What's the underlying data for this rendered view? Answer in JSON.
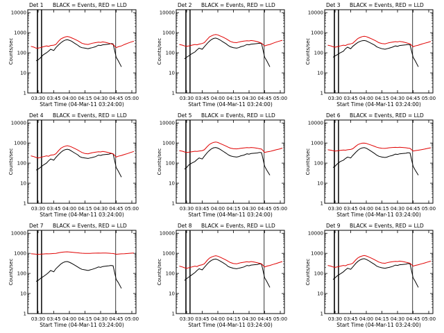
{
  "colors": {
    "events": "#000000",
    "lld": "#e00000",
    "background": "#ffffff"
  },
  "shared": {
    "xticks": [
      "03:30",
      "03:45",
      "04:00",
      "04:15",
      "04:30",
      "04:45",
      "05:00"
    ],
    "xtick_minutes": [
      210,
      225,
      240,
      255,
      270,
      285,
      300
    ],
    "xlim_minutes": [
      200,
      304
    ],
    "yticks": [
      "1",
      "10",
      "100",
      "1000",
      "10000"
    ],
    "ytick_values": [
      1,
      10,
      100,
      1000,
      10000
    ],
    "ylim": [
      1,
      14000
    ],
    "yscale": "log",
    "ylabel": "Counts/sec",
    "xlabel": "Start Time (04-Mar-11 03:24:00)",
    "legend_text": "BLACK = Events, RED = LLD",
    "x_minutes": [
      203,
      206,
      208,
      210,
      212,
      215,
      218,
      220,
      222,
      225,
      227,
      230,
      232,
      234,
      236,
      238,
      240,
      242,
      245,
      248,
      250,
      252,
      255,
      258,
      260,
      262,
      265,
      268,
      270,
      272,
      275,
      278,
      280,
      282,
      285,
      287,
      290,
      293,
      296,
      299,
      302
    ]
  },
  "chart_data": [
    {
      "type": "line",
      "title": "Det 1",
      "yscale": "log",
      "xlabel": "Start Time (04-Mar-11 03:24:00)",
      "ylabel": "Counts/sec",
      "series": [
        {
          "name": "BLACK = Events",
          "values": [
            null,
            null,
            40,
            45,
            55,
            80,
            100,
            120,
            150,
            130,
            180,
            260,
            320,
            380,
            430,
            450,
            420,
            380,
            300,
            240,
            200,
            180,
            170,
            160,
            170,
            180,
            200,
            240,
            230,
            250,
            260,
            270,
            290,
            280,
            60,
            40,
            20,
            null,
            null,
            null,
            null
          ]
        },
        {
          "name": "RED = LLD",
          "values": [
            210,
            190,
            170,
            170,
            180,
            200,
            220,
            210,
            230,
            240,
            260,
            400,
            500,
            560,
            620,
            650,
            620,
            560,
            480,
            400,
            350,
            300,
            270,
            260,
            280,
            300,
            320,
            340,
            330,
            350,
            330,
            300,
            280,
            260,
            180,
            200,
            220,
            260,
            300,
            340,
            380
          ]
        }
      ]
    },
    {
      "type": "line",
      "title": "Det 2",
      "yscale": "log",
      "xlabel": "Start Time (04-Mar-11 03:24:00)",
      "ylabel": "Counts/sec",
      "series": [
        {
          "name": "BLACK = Events",
          "values": [
            null,
            null,
            50,
            60,
            70,
            90,
            110,
            140,
            170,
            150,
            200,
            300,
            380,
            460,
            520,
            540,
            500,
            440,
            350,
            280,
            230,
            200,
            180,
            170,
            180,
            200,
            220,
            260,
            250,
            270,
            280,
            290,
            300,
            290,
            60,
            40,
            20,
            null,
            null,
            null,
            null
          ]
        },
        {
          "name": "RED = LLD",
          "values": [
            260,
            240,
            220,
            210,
            220,
            240,
            260,
            250,
            270,
            290,
            320,
            480,
            620,
            700,
            780,
            820,
            780,
            700,
            600,
            500,
            430,
            370,
            330,
            320,
            340,
            360,
            380,
            400,
            390,
            410,
            390,
            360,
            330,
            300,
            220,
            240,
            260,
            300,
            340,
            380,
            420
          ]
        }
      ]
    },
    {
      "type": "line",
      "title": "Det 3",
      "yscale": "log",
      "xlabel": "Start Time (04-Mar-11 03:24:00)",
      "ylabel": "Counts/sec",
      "series": [
        {
          "name": "BLACK = Events",
          "values": [
            null,
            null,
            60,
            70,
            80,
            100,
            120,
            160,
            190,
            160,
            210,
            280,
            330,
            370,
            400,
            410,
            390,
            350,
            290,
            240,
            200,
            180,
            160,
            150,
            160,
            170,
            190,
            220,
            210,
            230,
            240,
            250,
            260,
            250,
            60,
            40,
            20,
            null,
            null,
            null,
            null
          ]
        },
        {
          "name": "RED = LLD",
          "values": [
            240,
            220,
            200,
            190,
            200,
            220,
            240,
            230,
            260,
            280,
            300,
            420,
            520,
            580,
            640,
            670,
            640,
            580,
            500,
            420,
            370,
            320,
            290,
            280,
            300,
            320,
            340,
            360,
            350,
            370,
            350,
            320,
            300,
            280,
            200,
            220,
            240,
            270,
            300,
            330,
            370
          ]
        }
      ]
    },
    {
      "type": "line",
      "title": "Det 4",
      "yscale": "log",
      "xlabel": "Start Time (04-Mar-11 03:24:00)",
      "ylabel": "Counts/sec",
      "series": [
        {
          "name": "BLACK = Events",
          "values": [
            null,
            null,
            45,
            50,
            60,
            80,
            100,
            130,
            160,
            140,
            190,
            280,
            350,
            420,
            470,
            490,
            460,
            400,
            320,
            260,
            210,
            190,
            180,
            170,
            180,
            190,
            210,
            250,
            240,
            260,
            270,
            280,
            300,
            290,
            60,
            40,
            20,
            null,
            null,
            null,
            null
          ]
        },
        {
          "name": "RED = LLD",
          "values": [
            230,
            210,
            190,
            180,
            190,
            210,
            230,
            220,
            250,
            260,
            290,
            440,
            560,
            640,
            700,
            740,
            700,
            640,
            540,
            450,
            390,
            340,
            300,
            290,
            310,
            330,
            350,
            370,
            360,
            380,
            360,
            330,
            310,
            290,
            200,
            220,
            240,
            270,
            300,
            340,
            380
          ]
        }
      ]
    },
    {
      "type": "line",
      "title": "Det 5",
      "yscale": "log",
      "xlabel": "Start Time (04-Mar-11 03:24:00)",
      "ylabel": "Counts/sec",
      "series": [
        {
          "name": "BLACK = Events",
          "values": [
            null,
            null,
            50,
            60,
            80,
            100,
            120,
            150,
            180,
            160,
            220,
            340,
            430,
            520,
            580,
            600,
            560,
            490,
            390,
            310,
            260,
            230,
            210,
            200,
            210,
            230,
            250,
            290,
            280,
            300,
            310,
            320,
            340,
            330,
            70,
            45,
            25,
            null,
            null,
            null,
            null
          ]
        },
        {
          "name": "RED = LLD",
          "values": [
            420,
            390,
            360,
            340,
            350,
            370,
            390,
            380,
            400,
            420,
            460,
            680,
            860,
            980,
            1080,
            1120,
            1060,
            960,
            820,
            700,
            620,
            560,
            520,
            510,
            530,
            550,
            570,
            590,
            580,
            600,
            580,
            550,
            520,
            500,
            340,
            360,
            380,
            420,
            460,
            500,
            560
          ]
        }
      ]
    },
    {
      "type": "line",
      "title": "Det 6",
      "yscale": "log",
      "xlabel": "Start Time (04-Mar-11 03:24:00)",
      "ylabel": "Counts/sec",
      "series": [
        {
          "name": "BLACK = Events",
          "values": [
            null,
            null,
            60,
            70,
            90,
            120,
            140,
            170,
            200,
            180,
            240,
            350,
            440,
            520,
            570,
            590,
            550,
            480,
            380,
            300,
            250,
            220,
            200,
            190,
            200,
            220,
            240,
            280,
            270,
            290,
            300,
            310,
            330,
            320,
            70,
            45,
            25,
            null,
            null,
            null,
            null
          ]
        },
        {
          "name": "RED = LLD",
          "values": [
            460,
            440,
            420,
            400,
            410,
            430,
            450,
            440,
            460,
            480,
            520,
            700,
            840,
            920,
            980,
            1000,
            960,
            880,
            780,
            680,
            620,
            580,
            550,
            540,
            560,
            580,
            600,
            610,
            600,
            620,
            600,
            580,
            560,
            540,
            400,
            420,
            440,
            470,
            500,
            540,
            580
          ]
        }
      ]
    },
    {
      "type": "line",
      "title": "Det 7",
      "yscale": "log",
      "xlabel": "Start Time (04-Mar-11 03:24:00)",
      "ylabel": "Counts/sec",
      "series": [
        {
          "name": "BLACK = Events",
          "values": [
            null,
            null,
            40,
            45,
            55,
            70,
            90,
            110,
            140,
            120,
            170,
            240,
            300,
            350,
            380,
            390,
            360,
            320,
            260,
            210,
            180,
            160,
            150,
            140,
            150,
            160,
            180,
            210,
            200,
            220,
            230,
            240,
            250,
            240,
            50,
            35,
            18,
            null,
            null,
            null,
            null
          ]
        },
        {
          "name": "RED = LLD",
          "values": [
            950,
            930,
            910,
            900,
            910,
            930,
            950,
            940,
            960,
            980,
            1000,
            1080,
            1120,
            1150,
            1180,
            1190,
            1170,
            1140,
            1100,
            1060,
            1030,
            1010,
            1000,
            990,
            1000,
            1010,
            1020,
            1030,
            1020,
            1040,
            1030,
            1010,
            990,
            980,
            900,
            920,
            940,
            960,
            980,
            1010,
            1040
          ]
        }
      ]
    },
    {
      "type": "line",
      "title": "Det 8",
      "yscale": "log",
      "xlabel": "Start Time (04-Mar-11 03:24:00)",
      "ylabel": "Counts/sec",
      "series": [
        {
          "name": "BLACK = Events",
          "values": [
            null,
            null,
            45,
            55,
            65,
            85,
            110,
            140,
            170,
            150,
            200,
            300,
            380,
            450,
            500,
            520,
            480,
            420,
            340,
            270,
            220,
            200,
            180,
            170,
            180,
            190,
            210,
            250,
            240,
            260,
            270,
            280,
            300,
            290,
            60,
            40,
            20,
            null,
            null,
            null,
            null
          ]
        },
        {
          "name": "RED = LLD",
          "values": [
            230,
            210,
            190,
            180,
            190,
            210,
            230,
            220,
            250,
            270,
            300,
            460,
            580,
            660,
            720,
            760,
            720,
            650,
            550,
            460,
            400,
            350,
            310,
            300,
            320,
            340,
            360,
            380,
            370,
            390,
            370,
            340,
            320,
            300,
            210,
            230,
            250,
            280,
            310,
            350,
            390
          ]
        }
      ]
    },
    {
      "type": "line",
      "title": "Det 9",
      "yscale": "log",
      "xlabel": "Start Time (04-Mar-11 03:24:00)",
      "ylabel": "Counts/sec",
      "series": [
        {
          "name": "BLACK = Events",
          "values": [
            null,
            null,
            50,
            60,
            75,
            95,
            120,
            150,
            180,
            160,
            210,
            320,
            400,
            470,
            520,
            540,
            500,
            440,
            350,
            280,
            230,
            210,
            190,
            180,
            190,
            200,
            220,
            260,
            250,
            270,
            280,
            290,
            310,
            300,
            60,
            40,
            20,
            null,
            null,
            null,
            null
          ]
        },
        {
          "name": "RED = LLD",
          "values": [
            250,
            230,
            210,
            200,
            210,
            230,
            250,
            240,
            270,
            290,
            320,
            480,
            600,
            680,
            740,
            780,
            740,
            670,
            570,
            480,
            420,
            370,
            330,
            320,
            340,
            360,
            380,
            400,
            390,
            410,
            390,
            360,
            340,
            320,
            230,
            250,
            270,
            300,
            330,
            370,
            410
          ]
        }
      ]
    }
  ]
}
